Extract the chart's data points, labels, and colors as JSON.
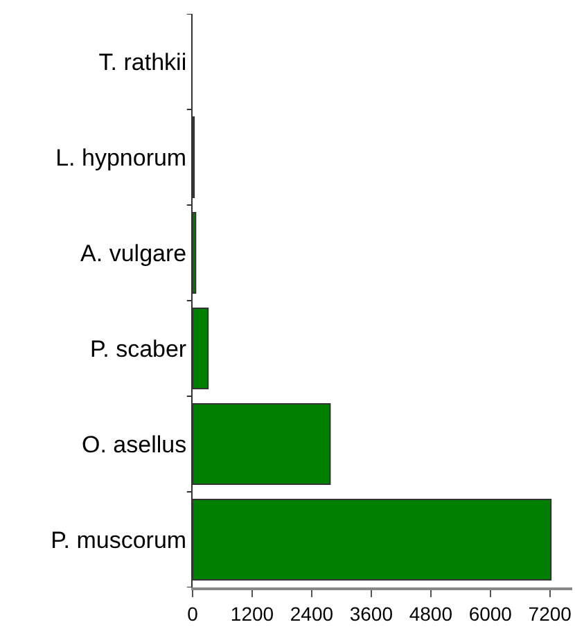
{
  "chart_data": {
    "type": "bar",
    "orientation": "horizontal",
    "categories": [
      "T. rathkii",
      "L. hypnorum",
      "A. vulgare",
      "P. scaber",
      "O. asellus",
      "P. muscorum"
    ],
    "values": [
      0,
      30,
      60,
      310,
      2770,
      7220
    ],
    "color": "#008000",
    "xlim": [
      0,
      7650
    ],
    "xticks": [
      0,
      1200,
      2400,
      3600,
      4800,
      6000,
      7200
    ]
  }
}
